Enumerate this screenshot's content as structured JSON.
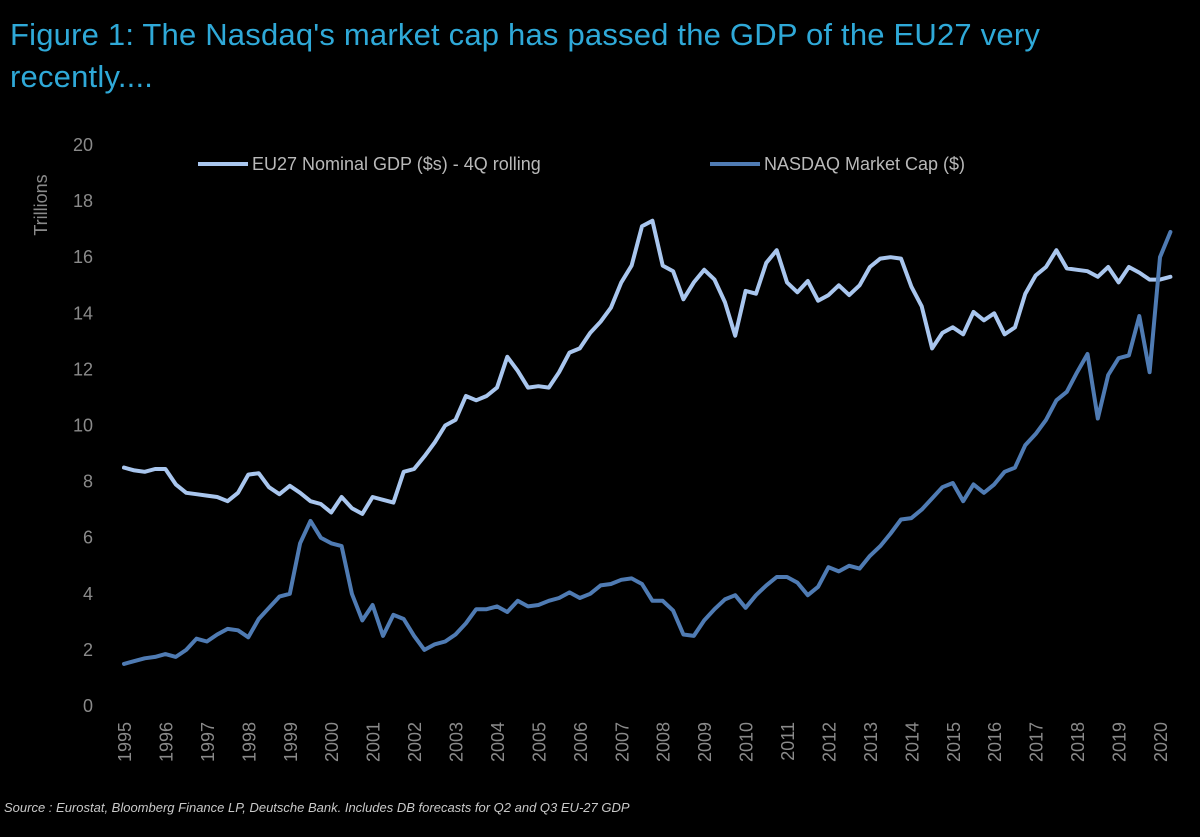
{
  "chart_data": {
    "type": "line",
    "title": "Figure 1: The Nasdaq's market cap has passed the GDP of the EU27 very recently....",
    "ylabel": "Trillions",
    "xlabel": "",
    "ylim": [
      0,
      20
    ],
    "yticks": [
      "0",
      "2",
      "4",
      "6",
      "8",
      "10",
      "12",
      "14",
      "16",
      "18",
      "20"
    ],
    "xlim": [
      1995,
      2020
    ],
    "xticks": [
      "1995",
      "1996",
      "1997",
      "1998",
      "1999",
      "2000",
      "2001",
      "2002",
      "2003",
      "2004",
      "2005",
      "2006",
      "2007",
      "2008",
      "2009",
      "2010",
      "2011",
      "2012",
      "2013",
      "2014",
      "2015",
      "2016",
      "2017",
      "2018",
      "2019",
      "2020"
    ],
    "legend_position": "top",
    "series": [
      {
        "name": "EU27  Nominal GDP ($s) - 4Q rolling",
        "color": "#a9c6ee",
        "points": [
          [
            1995.0,
            8.5
          ],
          [
            1995.25,
            8.4
          ],
          [
            1995.5,
            8.35
          ],
          [
            1995.75,
            8.45
          ],
          [
            1996.0,
            8.45
          ],
          [
            1996.25,
            7.9
          ],
          [
            1996.5,
            7.6
          ],
          [
            1996.75,
            7.55
          ],
          [
            1997.0,
            7.5
          ],
          [
            1997.25,
            7.45
          ],
          [
            1997.5,
            7.3
          ],
          [
            1997.75,
            7.6
          ],
          [
            1998.0,
            8.25
          ],
          [
            1998.25,
            8.3
          ],
          [
            1998.5,
            7.8
          ],
          [
            1998.75,
            7.55
          ],
          [
            1999.0,
            7.85
          ],
          [
            1999.25,
            7.6
          ],
          [
            1999.5,
            7.3
          ],
          [
            1999.75,
            7.2
          ],
          [
            2000.0,
            6.9
          ],
          [
            2000.25,
            7.45
          ],
          [
            2000.5,
            7.05
          ],
          [
            2000.75,
            6.85
          ],
          [
            2001.0,
            7.45
          ],
          [
            2001.25,
            7.35
          ],
          [
            2001.5,
            7.25
          ],
          [
            2001.75,
            8.35
          ],
          [
            2002.0,
            8.45
          ],
          [
            2002.25,
            8.9
          ],
          [
            2002.5,
            9.4
          ],
          [
            2002.75,
            10.0
          ],
          [
            2003.0,
            10.2
          ],
          [
            2003.25,
            11.05
          ],
          [
            2003.5,
            10.9
          ],
          [
            2003.75,
            11.05
          ],
          [
            2004.0,
            11.35
          ],
          [
            2004.25,
            12.45
          ],
          [
            2004.5,
            11.95
          ],
          [
            2004.75,
            11.35
          ],
          [
            2005.0,
            11.4
          ],
          [
            2005.25,
            11.35
          ],
          [
            2005.5,
            11.9
          ],
          [
            2005.75,
            12.6
          ],
          [
            2006.0,
            12.75
          ],
          [
            2006.25,
            13.3
          ],
          [
            2006.5,
            13.7
          ],
          [
            2006.75,
            14.2
          ],
          [
            2007.0,
            15.1
          ],
          [
            2007.25,
            15.7
          ],
          [
            2007.5,
            17.1
          ],
          [
            2007.75,
            17.3
          ],
          [
            2008.0,
            15.7
          ],
          [
            2008.25,
            15.5
          ],
          [
            2008.5,
            14.5
          ],
          [
            2008.75,
            15.1
          ],
          [
            2009.0,
            15.55
          ],
          [
            2009.25,
            15.2
          ],
          [
            2009.5,
            14.4
          ],
          [
            2009.75,
            13.2
          ],
          [
            2010.0,
            14.8
          ],
          [
            2010.25,
            14.7
          ],
          [
            2010.5,
            15.8
          ],
          [
            2010.75,
            16.25
          ],
          [
            2011.0,
            15.1
          ],
          [
            2011.25,
            14.75
          ],
          [
            2011.5,
            15.15
          ],
          [
            2011.75,
            14.45
          ],
          [
            2012.0,
            14.65
          ],
          [
            2012.25,
            15.0
          ],
          [
            2012.5,
            14.65
          ],
          [
            2012.75,
            15.0
          ],
          [
            2013.0,
            15.65
          ],
          [
            2013.25,
            15.95
          ],
          [
            2013.5,
            16.0
          ],
          [
            2013.75,
            15.95
          ],
          [
            2014.0,
            14.95
          ],
          [
            2014.25,
            14.25
          ],
          [
            2014.5,
            12.75
          ],
          [
            2014.75,
            13.3
          ],
          [
            2015.0,
            13.5
          ],
          [
            2015.25,
            13.25
          ],
          [
            2015.5,
            14.05
          ],
          [
            2015.75,
            13.75
          ],
          [
            2016.0,
            14.0
          ],
          [
            2016.25,
            13.25
          ],
          [
            2016.5,
            13.5
          ],
          [
            2016.75,
            14.7
          ],
          [
            2017.0,
            15.35
          ],
          [
            2017.25,
            15.65
          ],
          [
            2017.5,
            16.25
          ],
          [
            2017.75,
            15.6
          ],
          [
            2018.0,
            15.55
          ],
          [
            2018.25,
            15.5
          ],
          [
            2018.5,
            15.3
          ],
          [
            2018.75,
            15.65
          ],
          [
            2019.0,
            15.1
          ],
          [
            2019.25,
            15.65
          ],
          [
            2019.5,
            15.45
          ],
          [
            2019.75,
            15.2
          ],
          [
            2020.0,
            15.2
          ],
          [
            2020.25,
            15.3
          ]
        ]
      },
      {
        "name": "NASDAQ Market Cap ($)",
        "color": "#4f7bb3",
        "points": [
          [
            1995.0,
            1.5
          ],
          [
            1995.25,
            1.6
          ],
          [
            1995.5,
            1.7
          ],
          [
            1995.75,
            1.75
          ],
          [
            1996.0,
            1.85
          ],
          [
            1996.25,
            1.75
          ],
          [
            1996.5,
            2.0
          ],
          [
            1996.75,
            2.4
          ],
          [
            1997.0,
            2.3
          ],
          [
            1997.25,
            2.55
          ],
          [
            1997.5,
            2.75
          ],
          [
            1997.75,
            2.7
          ],
          [
            1998.0,
            2.45
          ],
          [
            1998.25,
            3.1
          ],
          [
            1998.5,
            3.5
          ],
          [
            1998.75,
            3.9
          ],
          [
            1999.0,
            4.0
          ],
          [
            1999.25,
            5.8
          ],
          [
            1999.5,
            6.6
          ],
          [
            1999.75,
            6.0
          ],
          [
            2000.0,
            5.8
          ],
          [
            2000.25,
            5.7
          ],
          [
            2000.5,
            4.0
          ],
          [
            2000.75,
            3.05
          ],
          [
            2001.0,
            3.6
          ],
          [
            2001.25,
            2.5
          ],
          [
            2001.5,
            3.25
          ],
          [
            2001.75,
            3.1
          ],
          [
            2002.0,
            2.5
          ],
          [
            2002.25,
            2.0
          ],
          [
            2002.5,
            2.2
          ],
          [
            2002.75,
            2.3
          ],
          [
            2003.0,
            2.55
          ],
          [
            2003.25,
            2.95
          ],
          [
            2003.5,
            3.45
          ],
          [
            2003.75,
            3.45
          ],
          [
            2004.0,
            3.55
          ],
          [
            2004.25,
            3.35
          ],
          [
            2004.5,
            3.75
          ],
          [
            2004.75,
            3.55
          ],
          [
            2005.0,
            3.6
          ],
          [
            2005.25,
            3.75
          ],
          [
            2005.5,
            3.85
          ],
          [
            2005.75,
            4.05
          ],
          [
            2006.0,
            3.85
          ],
          [
            2006.25,
            4.0
          ],
          [
            2006.5,
            4.3
          ],
          [
            2006.75,
            4.35
          ],
          [
            2007.0,
            4.5
          ],
          [
            2007.25,
            4.55
          ],
          [
            2007.5,
            4.35
          ],
          [
            2007.75,
            3.75
          ],
          [
            2008.0,
            3.75
          ],
          [
            2008.25,
            3.4
          ],
          [
            2008.5,
            2.55
          ],
          [
            2008.75,
            2.5
          ],
          [
            2009.0,
            3.05
          ],
          [
            2009.25,
            3.45
          ],
          [
            2009.5,
            3.8
          ],
          [
            2009.75,
            3.95
          ],
          [
            2010.0,
            3.5
          ],
          [
            2010.25,
            3.95
          ],
          [
            2010.5,
            4.3
          ],
          [
            2010.75,
            4.6
          ],
          [
            2011.0,
            4.6
          ],
          [
            2011.25,
            4.4
          ],
          [
            2011.5,
            3.95
          ],
          [
            2011.75,
            4.25
          ],
          [
            2012.0,
            4.95
          ],
          [
            2012.25,
            4.8
          ],
          [
            2012.5,
            5.0
          ],
          [
            2012.75,
            4.9
          ],
          [
            2013.0,
            5.35
          ],
          [
            2013.25,
            5.7
          ],
          [
            2013.5,
            6.15
          ],
          [
            2013.75,
            6.65
          ],
          [
            2014.0,
            6.7
          ],
          [
            2014.25,
            7.0
          ],
          [
            2014.5,
            7.4
          ],
          [
            2014.75,
            7.8
          ],
          [
            2015.0,
            7.95
          ],
          [
            2015.25,
            7.3
          ],
          [
            2015.5,
            7.9
          ],
          [
            2015.75,
            7.6
          ],
          [
            2016.0,
            7.9
          ],
          [
            2016.25,
            8.35
          ],
          [
            2016.5,
            8.5
          ],
          [
            2016.75,
            9.3
          ],
          [
            2017.0,
            9.7
          ],
          [
            2017.25,
            10.2
          ],
          [
            2017.5,
            10.9
          ],
          [
            2017.75,
            11.2
          ],
          [
            2018.0,
            11.9
          ],
          [
            2018.25,
            12.55
          ],
          [
            2018.5,
            10.25
          ],
          [
            2018.75,
            11.8
          ],
          [
            2019.0,
            12.4
          ],
          [
            2019.25,
            12.5
          ],
          [
            2019.5,
            13.9
          ],
          [
            2019.75,
            11.9
          ],
          [
            2020.0,
            16.0
          ],
          [
            2020.25,
            16.9
          ]
        ]
      }
    ]
  },
  "source": "Source : Eurostat, Bloomberg Finance LP, Deutsche Bank. Includes DB forecasts for Q2 and Q3 EU-27 GDP"
}
